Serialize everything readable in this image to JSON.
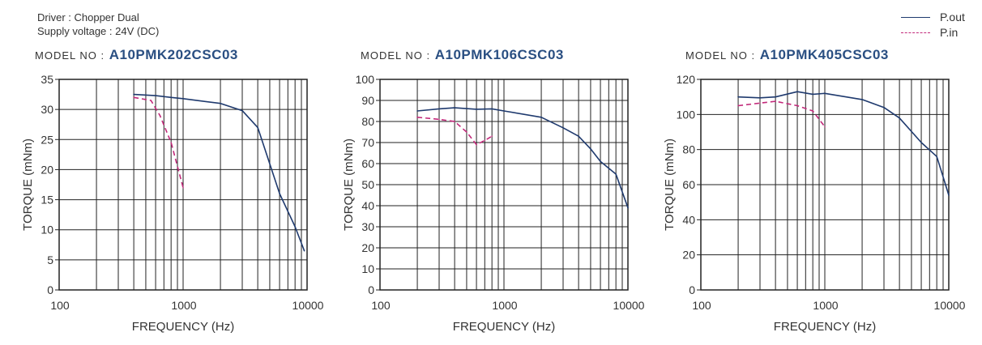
{
  "header": {
    "driver": "Driver : Chopper Dual",
    "supply": "Supply voltage : 24V  (DC)"
  },
  "legend": {
    "items": [
      {
        "label": "P.out",
        "color": "#1f3a6e",
        "dashed": false
      },
      {
        "label": "P.in",
        "color": "#c2297a",
        "dashed": true
      }
    ]
  },
  "colors": {
    "pout": "#1f3a6e",
    "pin": "#c2297a",
    "model_name": "#2a4f82"
  },
  "chart_data": [
    {
      "type": "line",
      "model_prefix": "MODEL NO :",
      "model": "A10PMK202CSC03",
      "xlabel": "FREQUENCY (Hz)",
      "ylabel": "TORQUE (mNm)",
      "xscale": "log",
      "xlim": [
        100,
        10000
      ],
      "ylim": [
        0,
        35
      ],
      "yticks": [
        0,
        5,
        10,
        15,
        20,
        25,
        30,
        35
      ],
      "xticks": [
        100,
        1000,
        10000
      ],
      "xtick_labels": [
        "100",
        "1000",
        "10000"
      ],
      "grid": true,
      "series": [
        {
          "name": "P.out",
          "x": [
            400,
            600,
            800,
            1000,
            2000,
            3000,
            4000,
            6000,
            8000,
            9500
          ],
          "y": [
            32.5,
            32.3,
            32.0,
            31.8,
            31.0,
            29.8,
            27.0,
            16.0,
            10.5,
            6.5
          ]
        },
        {
          "name": "P.in",
          "x": [
            400,
            550,
            650,
            800,
            1000
          ],
          "y": [
            32.0,
            31.5,
            29.0,
            24.5,
            17.0
          ]
        }
      ]
    },
    {
      "type": "line",
      "model_prefix": "MODEL NO :",
      "model": "A10PMK106CSC03",
      "xlabel": "FREQUENCY (Hz)",
      "ylabel": "TORQUE (mNm)",
      "xscale": "log",
      "xlim": [
        100,
        10000
      ],
      "ylim": [
        0,
        100
      ],
      "yticks": [
        0,
        10,
        20,
        30,
        40,
        50,
        60,
        70,
        80,
        90,
        100
      ],
      "xticks": [
        100,
        1000,
        10000
      ],
      "xtick_labels": [
        "100",
        "1000",
        "10000"
      ],
      "grid": true,
      "series": [
        {
          "name": "P.out",
          "x": [
            200,
            300,
            400,
            600,
            800,
            1000,
            2000,
            3000,
            4000,
            5000,
            6000,
            8000,
            10000
          ],
          "y": [
            85,
            86,
            86.5,
            85.8,
            86,
            85,
            82,
            77,
            73,
            67,
            61,
            55,
            39
          ]
        },
        {
          "name": "P.in",
          "x": [
            200,
            300,
            400,
            500,
            600,
            700,
            800
          ],
          "y": [
            82,
            81,
            80,
            75,
            69,
            71,
            73
          ]
        }
      ]
    },
    {
      "type": "line",
      "model_prefix": "MODEL NO :",
      "model": "A10PMK405CSC03",
      "xlabel": "FREQUENCY (Hz)",
      "ylabel": "TORQUE (mNm)",
      "xscale": "log",
      "xlim": [
        100,
        10000
      ],
      "ylim": [
        0,
        120
      ],
      "yticks": [
        0,
        20,
        40,
        60,
        80,
        100,
        120
      ],
      "xticks": [
        100,
        1000,
        10000
      ],
      "xtick_labels": [
        "100",
        "1000",
        "10000"
      ],
      "grid": true,
      "series": [
        {
          "name": "P.out",
          "x": [
            200,
            300,
            400,
            600,
            800,
            1000,
            2000,
            3000,
            4000,
            6000,
            8000,
            10000
          ],
          "y": [
            110,
            109.5,
            110,
            113,
            111.5,
            112,
            108.5,
            104,
            98,
            84,
            76,
            54
          ]
        },
        {
          "name": "P.in",
          "x": [
            200,
            300,
            400,
            600,
            800,
            1000
          ],
          "y": [
            105,
            106.5,
            107.5,
            105,
            102,
            93
          ]
        }
      ]
    }
  ]
}
